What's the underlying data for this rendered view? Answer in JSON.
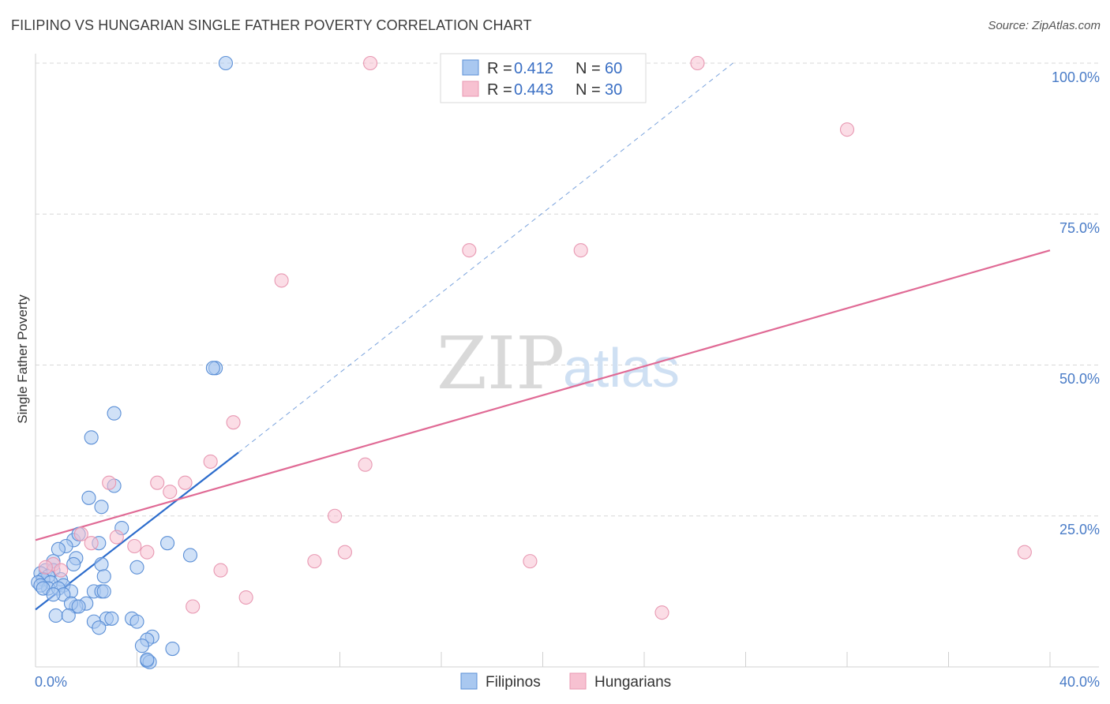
{
  "title": "FILIPINO VS HUNGARIAN SINGLE FATHER POVERTY CORRELATION CHART",
  "source": "Source: ZipAtlas.com",
  "watermark": {
    "zip": "ZIP",
    "atlas": "atlas"
  },
  "colors": {
    "filipino_fill": "#a9c8f0",
    "filipino_stroke": "#5b8fd6",
    "filipino_line": "#2c6ccc",
    "hungarian_fill": "#f7c1d1",
    "hungarian_stroke": "#e898b2",
    "hungarian_line": "#e06a95",
    "grid": "#d8d8d8",
    "axis_text": "#4a7cc7"
  },
  "legend": {
    "rows": [
      {
        "r_label": "R =",
        "r_value": "0.412",
        "n_label": "N =",
        "n_value": "60"
      },
      {
        "r_label": "R =",
        "r_value": "0.443",
        "n_label": "N =",
        "n_value": "30"
      }
    ]
  },
  "bottom_legend": [
    "Filipinos",
    "Hungarians"
  ],
  "chart_data": {
    "type": "scatter",
    "title": "FILIPINO VS HUNGARIAN SINGLE FATHER POVERTY CORRELATION CHART",
    "xlabel": "",
    "ylabel": "Single Father Poverty",
    "xlim": [
      0,
      40
    ],
    "ylim": [
      0,
      100
    ],
    "x_tick_labels": [
      "0.0%",
      "40.0%"
    ],
    "y_tick_labels": [
      "25.0%",
      "50.0%",
      "75.0%",
      "100.0%"
    ],
    "y_tick_values": [
      25,
      50,
      75,
      100
    ],
    "series": [
      {
        "name": "Filipinos",
        "r": 0.412,
        "n": 60,
        "trend": {
          "x0": 0.0,
          "y0": 9.5,
          "x1": 8.0,
          "y1": 35.5,
          "dash_to_x": 27.5,
          "dash_to_y": 100
        },
        "points": [
          [
            7.5,
            100
          ],
          [
            7.1,
            49.5
          ],
          [
            7.0,
            49.5
          ],
          [
            3.1,
            42
          ],
          [
            2.2,
            38
          ],
          [
            3.1,
            30
          ],
          [
            2.1,
            28
          ],
          [
            2.6,
            26.5
          ],
          [
            3.4,
            23
          ],
          [
            5.2,
            20.5
          ],
          [
            2.5,
            20.5
          ],
          [
            1.5,
            21
          ],
          [
            1.7,
            22
          ],
          [
            1.2,
            20
          ],
          [
            0.9,
            19.5
          ],
          [
            6.1,
            18.5
          ],
          [
            1.6,
            18
          ],
          [
            0.7,
            17.5
          ],
          [
            1.5,
            17
          ],
          [
            2.6,
            17
          ],
          [
            0.4,
            16
          ],
          [
            0.7,
            16
          ],
          [
            4.0,
            16.5
          ],
          [
            0.2,
            15.5
          ],
          [
            0.5,
            15
          ],
          [
            2.7,
            15
          ],
          [
            1.0,
            14.5
          ],
          [
            0.3,
            14.5
          ],
          [
            0.1,
            14
          ],
          [
            0.6,
            14
          ],
          [
            1.1,
            13.5
          ],
          [
            0.5,
            13
          ],
          [
            0.2,
            13.5
          ],
          [
            0.3,
            13
          ],
          [
            0.9,
            13
          ],
          [
            1.4,
            12.5
          ],
          [
            2.3,
            12.5
          ],
          [
            2.6,
            12.5
          ],
          [
            2.7,
            12.5
          ],
          [
            1.1,
            12
          ],
          [
            0.7,
            12
          ],
          [
            2.0,
            10.5
          ],
          [
            1.6,
            10
          ],
          [
            1.4,
            10.5
          ],
          [
            1.7,
            10
          ],
          [
            0.8,
            8.5
          ],
          [
            1.3,
            8.5
          ],
          [
            2.8,
            8
          ],
          [
            3.0,
            8
          ],
          [
            3.8,
            8
          ],
          [
            2.3,
            7.5
          ],
          [
            4.0,
            7.5
          ],
          [
            2.5,
            6.5
          ],
          [
            4.6,
            5
          ],
          [
            4.4,
            4.5
          ],
          [
            4.2,
            3.5
          ],
          [
            5.4,
            3
          ],
          [
            4.4,
            1
          ],
          [
            4.5,
            0.8
          ],
          [
            4.4,
            1.2
          ]
        ]
      },
      {
        "name": "Hungarians",
        "r": 0.443,
        "n": 30,
        "trend": {
          "x0": 0.0,
          "y0": 21,
          "x1": 40.0,
          "y1": 69
        },
        "points": [
          [
            13.2,
            100
          ],
          [
            26.1,
            100
          ],
          [
            32.0,
            89
          ],
          [
            17.1,
            69
          ],
          [
            21.5,
            69
          ],
          [
            9.7,
            64
          ],
          [
            7.8,
            40.5
          ],
          [
            6.9,
            34
          ],
          [
            13.0,
            33.5
          ],
          [
            2.9,
            30.5
          ],
          [
            4.8,
            30.5
          ],
          [
            5.9,
            30.5
          ],
          [
            5.3,
            29
          ],
          [
            11.8,
            25
          ],
          [
            1.8,
            22
          ],
          [
            3.2,
            21.5
          ],
          [
            2.2,
            20.5
          ],
          [
            3.9,
            20
          ],
          [
            4.4,
            19
          ],
          [
            12.2,
            19
          ],
          [
            39.0,
            19
          ],
          [
            11.0,
            17.5
          ],
          [
            19.5,
            17.5
          ],
          [
            0.7,
            17
          ],
          [
            0.4,
            16.5
          ],
          [
            1.0,
            16
          ],
          [
            7.3,
            16
          ],
          [
            8.3,
            11.5
          ],
          [
            6.2,
            10
          ],
          [
            24.7,
            9
          ]
        ]
      }
    ]
  }
}
